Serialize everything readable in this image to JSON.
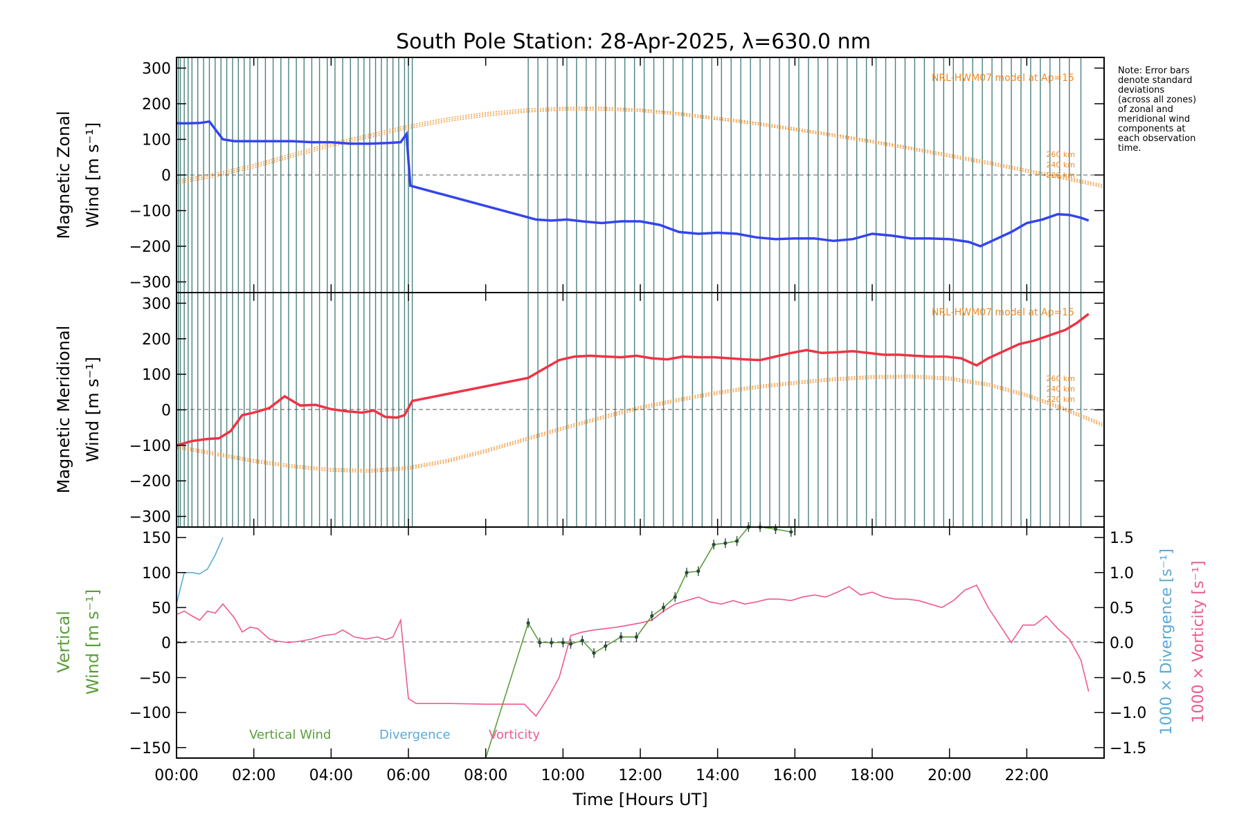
{
  "title": "South Pole Station: 28-Apr-2025, λ=630.0 nm",
  "note": "Note: Error bars\ndenote standard\ndeviations\n(across all zones)\nof zonal and\nmeridional wind\ncomponents at\neach observation\ntime.",
  "colors": {
    "zonal": "#3344ee",
    "meridional": "#ee3344",
    "vertical": "#5a9e3a",
    "divergence": "#5aaad6",
    "vorticity": "#ee5a8a",
    "model": "#ee8a22",
    "obs_lines": "#2a6a6a"
  },
  "chart_data": [
    {
      "type": "line",
      "panel": "zonal",
      "ylabel_line1": "Magnetic Zonal",
      "ylabel_line2": "Wind [m s⁻¹]",
      "ylim": [
        -330,
        330
      ],
      "yticks": [
        300,
        200,
        100,
        0,
        -100,
        -200,
        -300
      ],
      "xlim": [
        0,
        24
      ],
      "model_label": "NRL-HWM07 model at Ap=15",
      "model_altitudes": [
        "260 km",
        "240 km",
        "220 km"
      ],
      "series": [
        {
          "x": [
            0,
            0.3,
            0.6,
            0.85,
            1.2,
            1.5,
            2.0,
            2.5,
            3.0,
            3.5,
            4.0,
            4.5,
            5.0,
            5.5,
            5.8,
            5.95,
            6.05,
            9.3,
            9.7,
            10.1,
            10.5,
            11.0,
            11.5,
            12.0,
            12.5,
            13.0,
            13.5,
            14.0,
            14.5,
            15.0,
            15.5,
            16.0,
            16.5,
            17.0,
            17.5,
            18.0,
            18.5,
            19.0,
            19.5,
            20.0,
            20.5,
            20.8,
            21.2,
            21.6,
            22.0,
            22.4,
            22.8,
            23.1,
            23.4,
            23.6
          ],
          "values": [
            145,
            145,
            146,
            150,
            100,
            95,
            95,
            95,
            95,
            92,
            92,
            88,
            88,
            90,
            92,
            115,
            -30,
            -125,
            -128,
            -125,
            -130,
            -135,
            -130,
            -130,
            -140,
            -160,
            -165,
            -162,
            -165,
            -175,
            -180,
            -178,
            -178,
            -185,
            -180,
            -165,
            -170,
            -178,
            -178,
            -180,
            -188,
            -200,
            -180,
            -160,
            -135,
            -125,
            -110,
            -112,
            -120,
            -128
          ]
        }
      ],
      "model_curves": [
        {
          "x": [
            0,
            1,
            2,
            3,
            4,
            5,
            6,
            7,
            8,
            9,
            10,
            11,
            12,
            13,
            14,
            15,
            16,
            17,
            18,
            19,
            20,
            21,
            22,
            23,
            24
          ],
          "values": [
            -15,
            5,
            30,
            60,
            90,
            115,
            140,
            160,
            175,
            185,
            190,
            190,
            185,
            175,
            162,
            148,
            132,
            115,
            97,
            78,
            58,
            38,
            16,
            -5,
            -28
          ]
        },
        {
          "x": [
            0,
            1,
            2,
            3,
            4,
            5,
            6,
            7,
            8,
            9,
            10,
            11,
            12,
            13,
            14,
            15,
            16,
            17,
            18,
            19,
            20,
            21,
            22,
            23,
            24
          ],
          "values": [
            -20,
            0,
            25,
            55,
            85,
            110,
            135,
            155,
            170,
            180,
            186,
            186,
            182,
            172,
            158,
            145,
            128,
            112,
            94,
            75,
            54,
            34,
            12,
            -9,
            -32
          ]
        },
        {
          "x": [
            0,
            1,
            2,
            3,
            4,
            5,
            6,
            7,
            8,
            9,
            10,
            11,
            12,
            13,
            14,
            15,
            16,
            17,
            18,
            19,
            20,
            21,
            22,
            23,
            24
          ],
          "values": [
            -25,
            -5,
            20,
            50,
            80,
            105,
            130,
            150,
            165,
            176,
            182,
            182,
            178,
            168,
            155,
            141,
            125,
            108,
            90,
            71,
            50,
            30,
            8,
            -13,
            -36
          ]
        }
      ]
    },
    {
      "type": "line",
      "panel": "meridional",
      "ylabel_line1": "Magnetic Meridional",
      "ylabel_line2": "Wind [m s⁻¹]",
      "ylim": [
        -330,
        330
      ],
      "yticks": [
        300,
        200,
        100,
        0,
        -100,
        -200,
        -300
      ],
      "xlim": [
        0,
        24
      ],
      "model_label": "NRL-HWM07 model at Ap=15",
      "model_altitudes": [
        "260 km",
        "240 km",
        "220 km"
      ],
      "series": [
        {
          "x": [
            0,
            0.4,
            0.8,
            1.1,
            1.4,
            1.7,
            2.0,
            2.4,
            2.8,
            3.2,
            3.6,
            4.0,
            4.4,
            4.8,
            5.1,
            5.4,
            5.7,
            5.9,
            6.1,
            9.1,
            9.5,
            9.9,
            10.3,
            10.7,
            11.1,
            11.5,
            11.9,
            12.3,
            12.7,
            13.1,
            13.5,
            13.9,
            14.3,
            14.7,
            15.1,
            15.5,
            15.9,
            16.3,
            16.7,
            17.1,
            17.5,
            17.9,
            18.3,
            18.7,
            19.1,
            19.5,
            19.9,
            20.3,
            20.7,
            21.0,
            21.4,
            21.8,
            22.2,
            22.6,
            23.0,
            23.3,
            23.6
          ],
          "values": [
            -100,
            -88,
            -82,
            -80,
            -60,
            -15,
            -8,
            5,
            38,
            12,
            14,
            2,
            -4,
            -8,
            -2,
            -20,
            -22,
            -15,
            25,
            90,
            115,
            140,
            150,
            152,
            150,
            148,
            152,
            145,
            142,
            150,
            148,
            148,
            145,
            142,
            140,
            150,
            160,
            168,
            160,
            162,
            165,
            160,
            155,
            155,
            152,
            150,
            150,
            145,
            125,
            145,
            165,
            185,
            195,
            210,
            225,
            245,
            270
          ]
        }
      ],
      "model_curves": [
        {
          "x": [
            0,
            1,
            2,
            3,
            4,
            5,
            6,
            7,
            8,
            9,
            10,
            11,
            12,
            13,
            14,
            15,
            16,
            17,
            18,
            19,
            20,
            21,
            22,
            23,
            24
          ],
          "values": [
            -100,
            -120,
            -140,
            -155,
            -165,
            -168,
            -160,
            -140,
            -112,
            -80,
            -48,
            -18,
            10,
            32,
            52,
            68,
            80,
            90,
            96,
            98,
            92,
            75,
            45,
            5,
            -40
          ]
        },
        {
          "x": [
            0,
            1,
            2,
            3,
            4,
            5,
            6,
            7,
            8,
            9,
            10,
            11,
            12,
            13,
            14,
            15,
            16,
            17,
            18,
            19,
            20,
            21,
            22,
            23,
            24
          ],
          "values": [
            -104,
            -124,
            -144,
            -159,
            -169,
            -172,
            -164,
            -144,
            -116,
            -84,
            -52,
            -22,
            6,
            28,
            48,
            64,
            76,
            86,
            92,
            94,
            88,
            71,
            41,
            1,
            -44
          ]
        },
        {
          "x": [
            0,
            1,
            2,
            3,
            4,
            5,
            6,
            7,
            8,
            9,
            10,
            11,
            12,
            13,
            14,
            15,
            16,
            17,
            18,
            19,
            20,
            21,
            22,
            23,
            24
          ],
          "values": [
            -108,
            -128,
            -148,
            -163,
            -173,
            -176,
            -168,
            -148,
            -120,
            -88,
            -56,
            -26,
            2,
            24,
            44,
            60,
            72,
            82,
            88,
            90,
            84,
            67,
            37,
            -3,
            -48
          ]
        }
      ]
    },
    {
      "type": "line",
      "panel": "vertical",
      "ylabel_line1": "Vertical",
      "ylabel_line2": "Wind [m s⁻¹]",
      "ylim": [
        -165,
        165
      ],
      "yticks": [
        150,
        100,
        50,
        0,
        -50,
        -100,
        -150
      ],
      "y2label_divergence": "1000 × Divergence [s⁻¹]",
      "y2label_vorticity": "1000 × Vorticity [s⁻¹]",
      "y2lim": [
        -1.65,
        1.65
      ],
      "y2ticks": [
        "1.5",
        "1.0",
        "0.5",
        "0.0",
        "−0.5",
        "−1.0",
        "−1.5"
      ],
      "y2tick_values": [
        1.5,
        1.0,
        0.5,
        0.0,
        -0.5,
        -1.0,
        -1.5
      ],
      "xlim": [
        0,
        24
      ],
      "xticks": [
        "00:00",
        "02:00",
        "04:00",
        "06:00",
        "08:00",
        "10:00",
        "12:00",
        "14:00",
        "16:00",
        "18:00",
        "20:00",
        "22:00"
      ],
      "xtick_values": [
        0,
        2,
        4,
        6,
        8,
        10,
        12,
        14,
        16,
        18,
        20,
        22
      ],
      "xlabel": "Time [Hours UT]",
      "legend": [
        "Vertical Wind",
        "Divergence",
        "Vorticity"
      ],
      "series": [
        {
          "name": "Vertical Wind",
          "x": [
            8.0,
            9.1,
            9.4,
            9.7,
            10.0,
            10.2,
            10.5,
            10.8,
            11.1,
            11.5,
            11.9,
            12.3,
            12.6,
            12.9,
            13.2,
            13.5,
            13.9,
            14.2,
            14.5,
            14.8,
            15.1,
            15.5,
            15.9
          ],
          "values": [
            -165,
            28,
            0,
            0,
            0,
            -2,
            3,
            -15,
            -5,
            8,
            8,
            38,
            50,
            65,
            100,
            102,
            140,
            142,
            145,
            168,
            165,
            162,
            158
          ]
        },
        {
          "name": "Divergence",
          "x": [
            0,
            0.2,
            0.4,
            0.6,
            0.8,
            1.0,
            1.2
          ],
          "values": [
            0.55,
            1.0,
            1.0,
            0.98,
            1.05,
            1.25,
            1.5
          ]
        },
        {
          "name": "Vorticity",
          "x": [
            0,
            0.2,
            0.4,
            0.6,
            0.8,
            1.0,
            1.2,
            1.5,
            1.7,
            1.9,
            2.1,
            2.4,
            2.6,
            2.9,
            3.2,
            3.5,
            3.8,
            4.1,
            4.3,
            4.6,
            4.9,
            5.2,
            5.4,
            5.6,
            5.8,
            6.0,
            6.2,
            7.0,
            8.0,
            9.0,
            9.3,
            9.6,
            9.9,
            10.2,
            10.5,
            10.8,
            11.1,
            11.4,
            11.7,
            12.0,
            12.3,
            12.6,
            12.9,
            13.2,
            13.5,
            13.8,
            14.1,
            14.4,
            14.7,
            15.0,
            15.3,
            15.6,
            15.9,
            16.2,
            16.5,
            16.8,
            17.1,
            17.4,
            17.7,
            18.0,
            18.3,
            18.6,
            18.9,
            19.2,
            19.5,
            19.8,
            20.1,
            20.4,
            20.7,
            21.0,
            21.3,
            21.6,
            21.9,
            22.2,
            22.5,
            22.8,
            23.1,
            23.4,
            23.6
          ],
          "values": [
            0.4,
            0.45,
            0.38,
            0.32,
            0.45,
            0.42,
            0.55,
            0.35,
            0.15,
            0.22,
            0.2,
            0.05,
            0.02,
            0.0,
            0.02,
            0.05,
            0.1,
            0.12,
            0.18,
            0.08,
            0.05,
            0.08,
            0.04,
            0.08,
            0.32,
            -0.8,
            -0.87,
            -0.87,
            -0.88,
            -0.88,
            -1.05,
            -0.8,
            -0.5,
            0.1,
            0.15,
            0.18,
            0.2,
            0.22,
            0.25,
            0.28,
            0.32,
            0.45,
            0.55,
            0.6,
            0.65,
            0.58,
            0.55,
            0.6,
            0.55,
            0.58,
            0.62,
            0.62,
            0.6,
            0.65,
            0.68,
            0.65,
            0.72,
            0.8,
            0.68,
            0.72,
            0.65,
            0.62,
            0.62,
            0.6,
            0.55,
            0.5,
            0.6,
            0.75,
            0.82,
            0.5,
            0.25,
            0.0,
            0.25,
            0.25,
            0.38,
            0.2,
            0.05,
            -0.25,
            -0.7
          ]
        }
      ]
    }
  ],
  "observation_times": [
    0.05,
    0.1,
    0.2,
    0.3,
    0.4,
    0.55,
    0.7,
    0.85,
    1.0,
    1.15,
    1.3,
    1.45,
    1.6,
    1.75,
    1.9,
    2.1,
    2.3,
    2.5,
    2.7,
    2.9,
    3.1,
    3.3,
    3.5,
    3.7,
    3.9,
    4.1,
    4.3,
    4.5,
    4.7,
    4.85,
    5.0,
    5.15,
    5.3,
    5.45,
    5.6,
    5.75,
    5.9,
    6.0,
    6.1,
    9.1,
    9.35,
    9.6,
    9.85,
    10.1,
    10.35,
    10.6,
    10.85,
    11.1,
    11.35,
    11.6,
    11.85,
    12.1,
    12.35,
    12.6,
    12.85,
    13.1,
    13.35,
    13.6,
    13.85,
    14.1,
    14.35,
    14.6,
    14.85,
    15.1,
    15.35,
    15.6,
    15.85,
    16.1,
    16.35,
    16.6,
    16.85,
    17.1,
    17.35,
    17.6,
    17.85,
    18.1,
    18.35,
    18.6,
    18.85,
    19.1,
    19.35,
    19.6,
    19.85,
    20.1,
    20.35,
    20.6,
    20.85,
    21.1,
    21.35,
    21.6,
    21.85,
    22.1,
    22.35,
    22.6,
    22.85,
    23.1,
    23.4
  ]
}
